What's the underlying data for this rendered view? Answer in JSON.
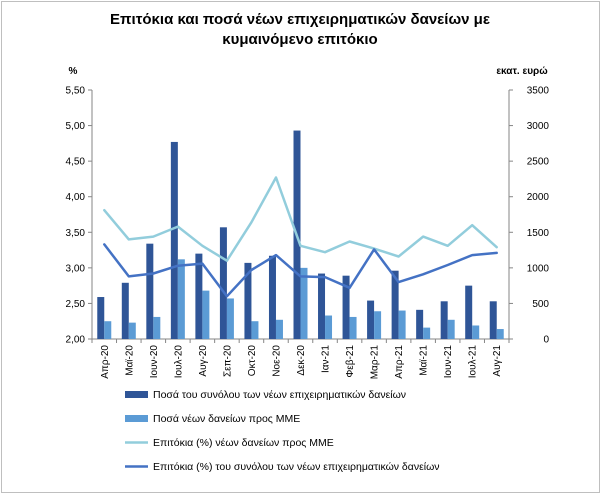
{
  "chart_data": {
    "type": "bar",
    "title": "Επιτόκια και ποσά νέων επιχειρηματικών δανείων με κυμαινόμενο επιτόκιο",
    "title_lines": [
      "Επιτόκια και ποσά νέων επιχειρηματικών δανείων με",
      "κυμαινόμενο επιτόκιο"
    ],
    "ylabel_left": "%",
    "ylabel_right": "εκατ. ευρώ",
    "ylim_left": [
      2.0,
      5.5
    ],
    "ylim_right": [
      0,
      3500
    ],
    "yticks_left": [
      "2,00",
      "2,50",
      "3,00",
      "3,50",
      "4,00",
      "4,50",
      "5,00",
      "5,50"
    ],
    "yticks_right": [
      "0",
      "500",
      "1000",
      "1500",
      "2000",
      "2500",
      "3000",
      "3500"
    ],
    "categories": [
      "Απρ-20",
      "Μαϊ-20",
      "Ιουν-20",
      "Ιουλ-20",
      "Αυγ-20",
      "Σεπ-20",
      "Οκτ-20",
      "Νοε-20",
      "Δεκ-20",
      "Ιαν-21",
      "Φεβ-21",
      "Μαρ-21",
      "Απρ-21",
      "Μαϊ-21",
      "Ιουν-21",
      "Ιουλ-21",
      "Αυγ-21"
    ],
    "grid": false,
    "legend_position": "bottom",
    "series": [
      {
        "name": "Ποσά του συνόλου των νέων επιχειρηματικών δανείων",
        "type": "bar",
        "axis": "right",
        "color": "#2f5597",
        "values": [
          590,
          790,
          1340,
          2770,
          1200,
          1570,
          1070,
          1170,
          2930,
          920,
          890,
          540,
          960,
          410,
          530,
          750,
          530
        ]
      },
      {
        "name": "Ποσά νέων δανείων προς ΜΜΕ",
        "type": "bar",
        "axis": "right",
        "color": "#5b9bd5",
        "values": [
          250,
          230,
          310,
          1120,
          680,
          570,
          250,
          270,
          1000,
          330,
          310,
          390,
          400,
          160,
          270,
          190,
          140
        ]
      },
      {
        "name": "Επιτόκια (%) νέων δανείων προς ΜΜΕ",
        "type": "line",
        "axis": "left",
        "color": "#92cddc",
        "values": [
          3.81,
          3.4,
          3.44,
          3.58,
          3.31,
          3.1,
          3.64,
          4.27,
          3.31,
          3.22,
          3.37,
          3.27,
          3.16,
          3.44,
          3.31,
          3.6,
          3.29
        ]
      },
      {
        "name": "Επιτόκια (%) του συνόλου των νέων επιχειρηματικών δανείων",
        "type": "line",
        "axis": "left",
        "color": "#4472c4",
        "values": [
          3.33,
          2.88,
          2.92,
          3.03,
          3.06,
          2.6,
          2.97,
          3.18,
          2.88,
          2.87,
          2.72,
          3.26,
          2.8,
          2.91,
          3.04,
          3.18,
          3.21
        ]
      }
    ]
  }
}
